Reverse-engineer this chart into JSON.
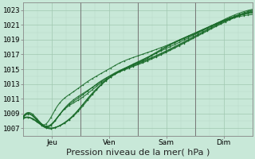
{
  "bg_color": "#c8e8d8",
  "plot_bg_color": "#c8e8d8",
  "grid_color_major": "#a0c8b0",
  "grid_color_minor": "#b8d8c8",
  "line_color": "#1a6b2a",
  "ylabel_ticks": [
    1007,
    1009,
    1011,
    1013,
    1015,
    1017,
    1019,
    1021,
    1023
  ],
  "ylim": [
    1006.0,
    1024.0
  ],
  "xlim": [
    0.0,
    4.0
  ],
  "xtick_positions": [
    0.5,
    1.5,
    2.5,
    3.5
  ],
  "xtick_labels": [
    "Jeu",
    "Ven",
    "Sam",
    "Dim"
  ],
  "xlabel": "Pression niveau de la mer( hPa )",
  "xlabel_fontsize": 8,
  "tick_fontsize": 6.5,
  "vline_positions": [
    1.0,
    2.0,
    3.0
  ],
  "n_lines": 7
}
